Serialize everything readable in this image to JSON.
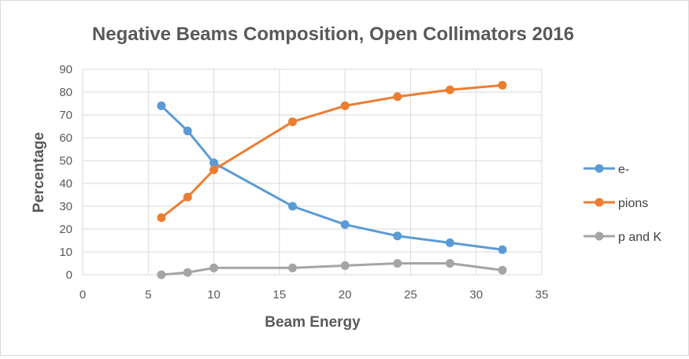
{
  "chart_data": {
    "type": "scatter",
    "title": "Negative Beams Composition, Open Collimators  2016",
    "xlabel": "Beam Energy",
    "ylabel": "Percentage",
    "xlim": [
      0,
      35
    ],
    "ylim": [
      0,
      90
    ],
    "xticks": [
      0,
      5,
      10,
      15,
      20,
      25,
      30,
      35
    ],
    "yticks": [
      0,
      10,
      20,
      30,
      40,
      50,
      60,
      70,
      80,
      90
    ],
    "grid": true,
    "legend_position": "right",
    "x": [
      6,
      8,
      10,
      16,
      20,
      24,
      28,
      32
    ],
    "series": [
      {
        "name": "e-",
        "color": "#5b9bd5",
        "values": [
          74,
          63,
          49,
          30,
          22,
          17,
          14,
          11
        ]
      },
      {
        "name": "pions",
        "color": "#ed7d31",
        "values": [
          25,
          34,
          46,
          67,
          74,
          78,
          81,
          83
        ]
      },
      {
        "name": "p and K",
        "color": "#a5a5a5",
        "values": [
          0,
          1,
          3,
          3,
          4,
          5,
          5,
          2
        ]
      }
    ]
  }
}
